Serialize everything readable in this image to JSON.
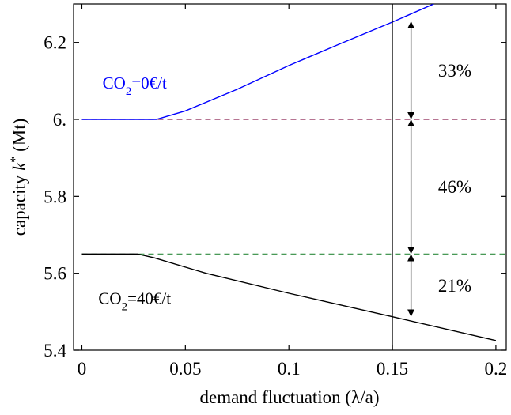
{
  "chart_data": {
    "type": "line",
    "xlabel": "demand fluctuation (λ/a)",
    "ylabel": "capacity k* (Mt)",
    "ylabel_parts": {
      "main": "capacity ",
      "var": "k",
      "sup": "*",
      "unit": " (Mt)"
    },
    "xlim": [
      -0.004,
      0.205
    ],
    "ylim": [
      5.4,
      6.3
    ],
    "x_ticks": [
      0,
      0.05,
      0.1,
      0.15,
      0.2
    ],
    "x_tick_labels": [
      "0",
      "0.05",
      "0.1",
      "0.15",
      "0.2"
    ],
    "y_ticks": [
      5.4,
      5.6,
      5.8,
      6.0,
      6.2
    ],
    "y_tick_labels": [
      "5.4",
      "5.6",
      "5.8",
      "6.",
      "6.2"
    ],
    "grid": false,
    "series": [
      {
        "label_parts": {
          "pre": "CO",
          "sub": "2",
          "post": "=0€/t"
        },
        "label_pos": [
          0.01,
          6.095
        ],
        "color": "#0000ff",
        "x": [
          0,
          0.036,
          0.05,
          0.075,
          0.1,
          0.125,
          0.15,
          0.17
        ],
        "y": [
          6.0,
          6.0,
          6.022,
          6.078,
          6.14,
          6.197,
          6.253,
          6.3
        ]
      },
      {
        "label_parts": {
          "pre": "CO",
          "sub": "2",
          "post": "=40€/t"
        },
        "label_pos": [
          0.008,
          5.535
        ],
        "color": "#000000",
        "x": [
          0,
          0.027,
          0.035,
          0.06,
          0.1,
          0.15,
          0.2
        ],
        "y": [
          5.65,
          5.65,
          5.64,
          5.6,
          5.548,
          5.487,
          5.425
        ]
      }
    ],
    "reference_lines": [
      {
        "y": 6.0,
        "color": "#8b2252",
        "style": "dashed"
      },
      {
        "y": 5.65,
        "color": "#2e8b3e",
        "style": "dashed"
      }
    ],
    "vertical_line": {
      "x": 0.15,
      "color": "#000000"
    },
    "brackets": [
      {
        "x": 0.159,
        "y1": 6.255,
        "y2": 6.0,
        "label": "33%",
        "label_y": 6.127
      },
      {
        "x": 0.159,
        "y1": 6.0,
        "y2": 5.65,
        "label": "46%",
        "label_y": 5.825
      },
      {
        "x": 0.159,
        "y1": 5.65,
        "y2": 5.487,
        "label": "21%",
        "label_y": 5.568
      }
    ]
  }
}
